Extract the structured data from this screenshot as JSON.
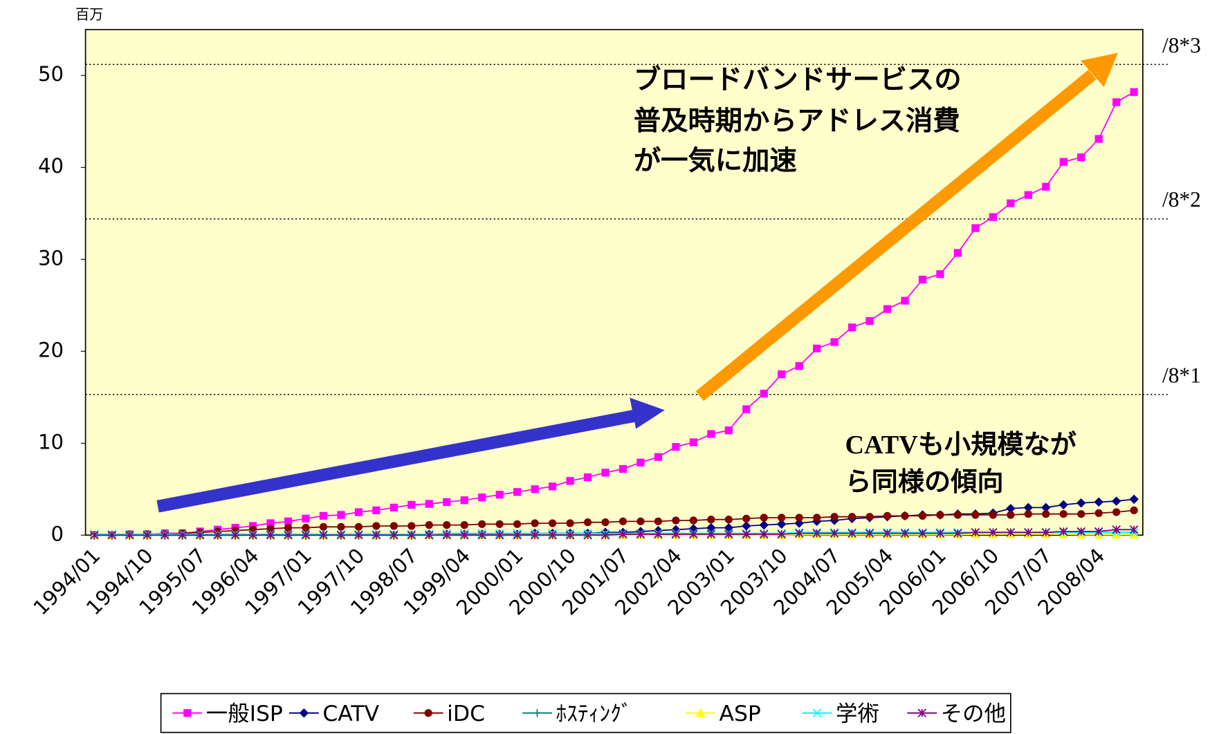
{
  "chart_data": {
    "type": "line",
    "y_unit": "百万",
    "categories": [
      "1994/01",
      null,
      null,
      "1994/10",
      null,
      null,
      "1995/07",
      null,
      null,
      "1996/04",
      null,
      null,
      "1997/01",
      null,
      null,
      "1997/10",
      null,
      null,
      "1998/07",
      null,
      null,
      "1999/04",
      null,
      null,
      "2000/01",
      null,
      null,
      "2000/10",
      null,
      null,
      "2001/07",
      null,
      null,
      "2002/04",
      null,
      null,
      "2003/01",
      null,
      null,
      "2003/10",
      null,
      null,
      "2004/07",
      null,
      null,
      "2005/04",
      null,
      null,
      "2006/01",
      null,
      null,
      "2006/10",
      null,
      null,
      "2007/07",
      null,
      null,
      "2008/04",
      null,
      null
    ],
    "ylim": [
      0,
      55
    ],
    "yticks": [
      0,
      10,
      20,
      30,
      40,
      50
    ],
    "reference_lines": [
      {
        "value": 15.3,
        "label": "/8*1"
      },
      {
        "value": 34.4,
        "label": "/8*2"
      },
      {
        "value": 51.2,
        "label": "/8*3"
      }
    ],
    "annotations": [
      {
        "lines": [
          "ブロードバンドサービスの",
          "普及時期からアドレス消費",
          "が一気に加速"
        ]
      },
      {
        "lines": [
          "CATVも小規模なが",
          "ら同様の傾向"
        ]
      }
    ],
    "legend": "bottom",
    "series": [
      {
        "name": "一般ISP",
        "color": "#ff00ff",
        "marker": "square",
        "values": [
          0,
          0,
          0.1,
          0.1,
          0.2,
          0.2,
          0.4,
          0.6,
          0.8,
          1.0,
          1.3,
          1.5,
          1.8,
          2.1,
          2.2,
          2.5,
          2.7,
          3.0,
          3.3,
          3.4,
          3.6,
          3.8,
          4.1,
          4.4,
          4.7,
          5.0,
          5.3,
          5.9,
          6.3,
          6.8,
          7.2,
          7.9,
          8.5,
          9.6,
          10.1,
          11.0,
          11.4,
          13.7,
          15.4,
          17.5,
          18.4,
          20.3,
          21.0,
          22.6,
          23.3,
          24.6,
          25.5,
          27.8,
          28.4,
          30.7,
          33.4,
          34.6,
          36.1,
          37.0,
          37.9,
          40.6,
          41.1,
          43.1,
          47.1,
          48.2
        ]
      },
      {
        "name": "CATV",
        "color": "#000080",
        "marker": "diamond",
        "values": [
          0,
          0,
          0,
          0,
          0,
          0,
          0,
          0,
          0,
          0,
          0,
          0,
          0,
          0,
          0,
          0,
          0,
          0,
          0,
          0.1,
          0.1,
          0.1,
          0.1,
          0.1,
          0.1,
          0.2,
          0.2,
          0.2,
          0.2,
          0.3,
          0.3,
          0.4,
          0.5,
          0.6,
          0.7,
          0.8,
          0.8,
          1.0,
          1.1,
          1.2,
          1.3,
          1.5,
          1.6,
          1.8,
          1.9,
          2.0,
          2.1,
          2.2,
          2.2,
          2.3,
          2.3,
          2.4,
          2.9,
          3.0,
          3.0,
          3.3,
          3.5,
          3.6,
          3.7,
          3.9
        ]
      },
      {
        "name": "iDC",
        "color": "#800000",
        "marker": "circle",
        "values": [
          0,
          0,
          0.05,
          0.1,
          0.1,
          0.2,
          0.3,
          0.4,
          0.5,
          0.6,
          0.7,
          0.8,
          0.8,
          0.9,
          0.9,
          0.9,
          1.0,
          1.0,
          1.0,
          1.1,
          1.1,
          1.1,
          1.2,
          1.2,
          1.2,
          1.3,
          1.3,
          1.3,
          1.4,
          1.4,
          1.5,
          1.5,
          1.5,
          1.6,
          1.6,
          1.7,
          1.7,
          1.8,
          1.9,
          1.9,
          1.9,
          1.9,
          2.0,
          2.0,
          2.0,
          2.1,
          2.1,
          2.1,
          2.2,
          2.2,
          2.2,
          2.2,
          2.2,
          2.3,
          2.3,
          2.3,
          2.3,
          2.4,
          2.5,
          2.7
        ]
      },
      {
        "name": "ﾎｽﾃｨﾝｸﾞ",
        "color": "#008080",
        "marker": "plus",
        "values": [
          0,
          0,
          0,
          0,
          0,
          0,
          0,
          0,
          0,
          0,
          0.05,
          0.05,
          0.05,
          0.05,
          0.05,
          0.05,
          0.05,
          0.05,
          0.05,
          0.05,
          0.05,
          0.05,
          0.05,
          0.05,
          0.05,
          0.05,
          0.05,
          0.05,
          0.05,
          0.05,
          0.1,
          0.1,
          0.1,
          0.1,
          0.1,
          0.1,
          0.1,
          0.1,
          0.1,
          0.1,
          0.2,
          0.2,
          0.2,
          0.2,
          0.2,
          0.2,
          0.2,
          0.2,
          0.2,
          0.2,
          0.3,
          0.3,
          0.3,
          0.3,
          0.3,
          0.3,
          0.3,
          0.3,
          0.3,
          0.3
        ]
      },
      {
        "name": "ASP",
        "color": "#ffff00",
        "marker": "triangle",
        "values": [
          0,
          0,
          0,
          0,
          0,
          0,
          0,
          0,
          0,
          0,
          0,
          0,
          0,
          0,
          0,
          0,
          0,
          0,
          0,
          0,
          0,
          0,
          0,
          0,
          0,
          0,
          0,
          0,
          0,
          0,
          0,
          0,
          0,
          0,
          0,
          0,
          0,
          0,
          0,
          0,
          0.05,
          0.05,
          0.05,
          0.05,
          0.05,
          0.05,
          0.05,
          0.05,
          0.05,
          0.05,
          0.1,
          0.1,
          0.1,
          0.1,
          0.1,
          0.1,
          0.05,
          0.05,
          0.05,
          0.05
        ]
      },
      {
        "name": "学術",
        "color": "#00ffff",
        "marker": "x",
        "values": [
          0.1,
          0.1,
          0.1,
          0.1,
          0.1,
          0.1,
          0.1,
          0.1,
          0.1,
          0.1,
          0.1,
          0.1,
          0.1,
          0.1,
          0.1,
          0.1,
          0.1,
          0.1,
          0.1,
          0.1,
          0.2,
          0.2,
          0.2,
          0.2,
          0.2,
          0.2,
          0.2,
          0.2,
          0.2,
          0.2,
          0.2,
          0.2,
          0.2,
          0.2,
          0.2,
          0.2,
          0.2,
          0.2,
          0.2,
          0.2,
          0.3,
          0.3,
          0.3,
          0.3,
          0.3,
          0.3,
          0.3,
          0.3,
          0.3,
          0.3,
          0.3,
          0.3,
          0.3,
          0.3,
          0.3,
          0.3,
          0.3,
          0.3,
          0.3,
          0.3
        ]
      },
      {
        "name": "その他",
        "color": "#800080",
        "marker": "star",
        "values": [
          0,
          0,
          0,
          0,
          0,
          0,
          0,
          0,
          0,
          0,
          0,
          0,
          0,
          0,
          0,
          0,
          0,
          0,
          0,
          0,
          0,
          0,
          0,
          0,
          0,
          0,
          0,
          0,
          0,
          0,
          0.1,
          0.1,
          0.1,
          0.1,
          0.1,
          0.1,
          0.1,
          0.1,
          0.1,
          0.1,
          0.2,
          0.2,
          0.2,
          0.2,
          0.2,
          0.2,
          0.2,
          0.2,
          0.2,
          0.2,
          0.3,
          0.3,
          0.3,
          0.3,
          0.3,
          0.4,
          0.4,
          0.4,
          0.6,
          0.6
        ]
      }
    ]
  }
}
